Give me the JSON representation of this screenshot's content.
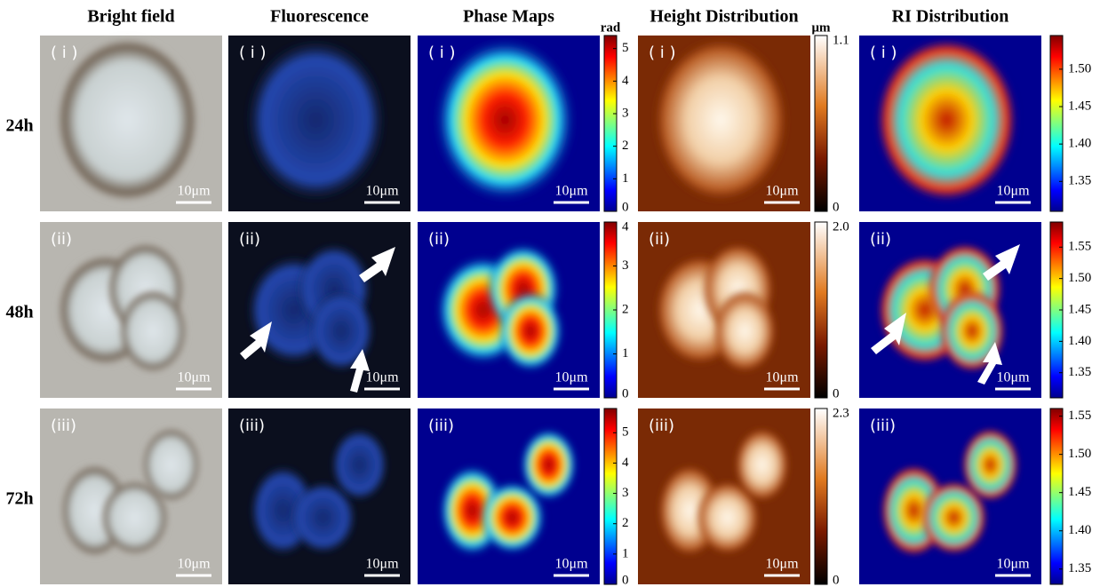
{
  "headers": [
    "Bright field",
    "Fluorescence",
    "Phase Maps",
    "Height Distribution",
    "RI  Distribution"
  ],
  "rows": [
    {
      "label": "24h",
      "panels": [
        {
          "label": "( i )",
          "scale_bar": "10μm"
        },
        {
          "label": "( i )",
          "scale_bar": "10μm"
        },
        {
          "label": "( i )",
          "scale_bar": "10μm"
        },
        {
          "label": "( i )",
          "scale_bar": "10μm"
        },
        {
          "label": "( i )",
          "scale_bar": "10μm"
        }
      ],
      "colorbars": [
        {
          "unit": "rad",
          "range": [
            0,
            5.4
          ],
          "ticks": [
            0,
            1,
            2,
            3,
            4,
            5
          ]
        },
        {
          "unit": "μm",
          "range": [
            0,
            1.1
          ],
          "ticks": [
            0,
            1.1
          ]
        },
        {
          "range": [
            1.31,
            1.545
          ],
          "ticks": [
            {
              "value": 1.35,
              "label": "1.35"
            },
            {
              "value": 1.4,
              "label": "1.40"
            },
            {
              "value": 1.45,
              "label": "1.45"
            },
            {
              "value": 1.5,
              "label": "1.50"
            }
          ]
        }
      ]
    },
    {
      "label": "48h",
      "panels": [
        {
          "label": "(ii)",
          "scale_bar": "10μm"
        },
        {
          "label": "(ii)",
          "scale_bar": "10μm"
        },
        {
          "label": "(ii)",
          "scale_bar": "10μm"
        },
        {
          "label": "(ii)",
          "scale_bar": "10μm"
        },
        {
          "label": "(ii)",
          "scale_bar": "10μm"
        }
      ],
      "colorbars": [
        {
          "range": [
            0,
            4
          ],
          "ticks": [
            0,
            1,
            2,
            3,
            4
          ]
        },
        {
          "range": [
            0,
            2.0
          ],
          "ticks": [
            0,
            {
              "value": 2.0,
              "label": "2.0"
            }
          ]
        },
        {
          "range": [
            1.31,
            1.59
          ],
          "ticks": [
            {
              "value": 1.35,
              "label": "1.35"
            },
            {
              "value": 1.4,
              "label": "1.40"
            },
            {
              "value": 1.45,
              "label": "1.45"
            },
            {
              "value": 1.5,
              "label": "1.50"
            },
            {
              "value": 1.55,
              "label": "1.55"
            }
          ]
        }
      ]
    },
    {
      "label": "72h",
      "panels": [
        {
          "label": "(iii)",
          "scale_bar": "10μm"
        },
        {
          "label": "(iii)",
          "scale_bar": "10μm"
        },
        {
          "label": "(iii)",
          "scale_bar": "10μm"
        },
        {
          "label": "(iii)",
          "scale_bar": "10μm"
        },
        {
          "label": "(iii)",
          "scale_bar": "10μm"
        }
      ],
      "colorbars": [
        {
          "range": [
            0,
            5.8
          ],
          "ticks": [
            0,
            1,
            2,
            3,
            4,
            5
          ]
        },
        {
          "range": [
            0,
            2.3
          ],
          "ticks": [
            0,
            2.3
          ]
        },
        {
          "range": [
            1.33,
            1.56
          ],
          "ticks": [
            {
              "value": 1.35,
              "label": "1.35"
            },
            {
              "value": 1.4,
              "label": "1.40"
            },
            {
              "value": 1.45,
              "label": "1.45"
            },
            {
              "value": 1.5,
              "label": "1.50"
            },
            {
              "value": 1.55,
              "label": "1.55"
            }
          ]
        }
      ]
    }
  ]
}
